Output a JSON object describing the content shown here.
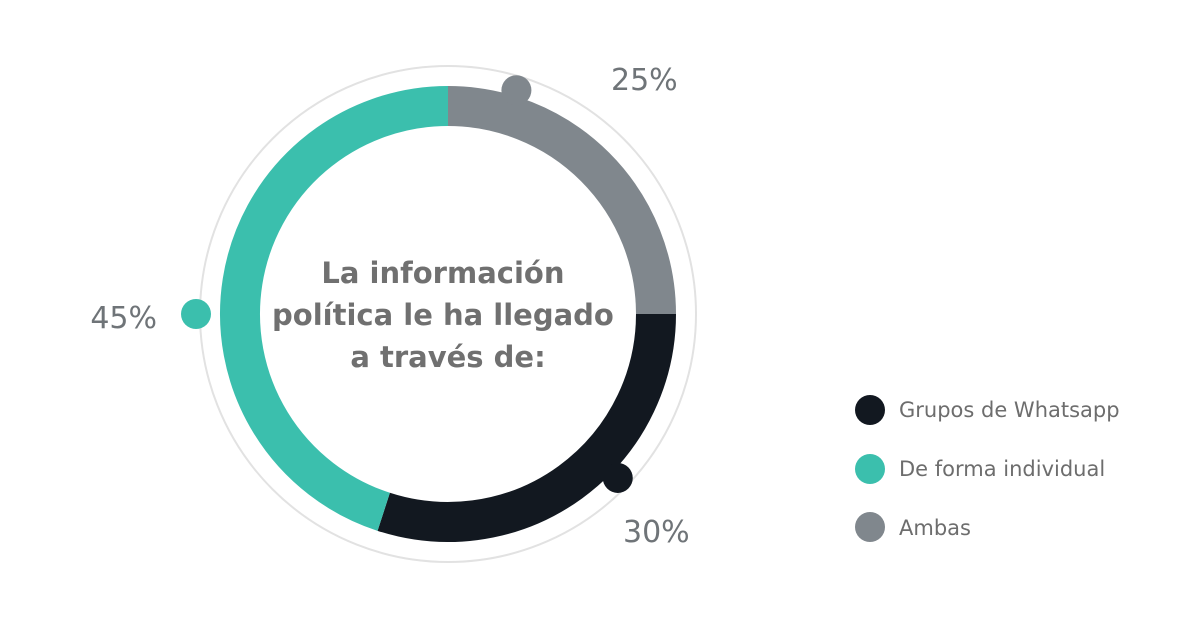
{
  "chart_data": {
    "type": "donut",
    "center_text": [
      "La información",
      "política le ha llegado",
      "a través de:"
    ],
    "slices": [
      {
        "label": "Grupos de Whatsapp",
        "value": 30,
        "value_label": "30%",
        "color": "#121820"
      },
      {
        "label": "De forma individual",
        "value": 45,
        "value_label": "45%",
        "color": "#3bbfad"
      },
      {
        "label": "Ambas",
        "value": 25,
        "value_label": "25%",
        "color": "#80878d"
      }
    ],
    "legend_position": "bottom-right"
  }
}
